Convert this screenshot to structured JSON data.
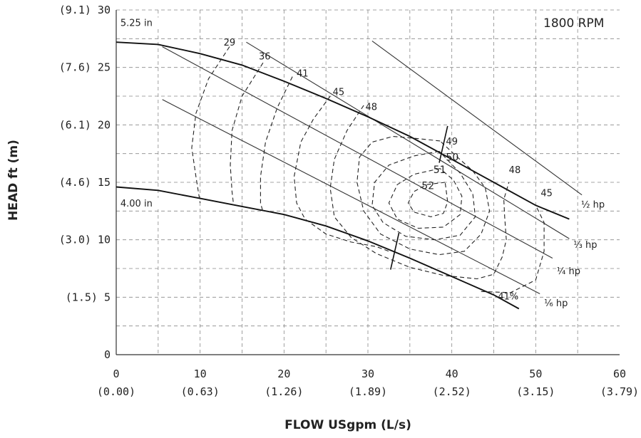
{
  "chart_data": {
    "type": "line",
    "title": "",
    "annotation_rpm": "1800 RPM",
    "xlabel": "FLOW USgpm (L/s)",
    "ylabel": "HEAD ft (m)",
    "xlim": [
      0,
      60
    ],
    "ylim": [
      0,
      30
    ],
    "grid": true,
    "x_ticks": [
      {
        "v": 0,
        "label": "0",
        "sub": "(0.00)"
      },
      {
        "v": 10,
        "label": "10",
        "sub": "(0.63)"
      },
      {
        "v": 20,
        "label": "20",
        "sub": "(1.26)"
      },
      {
        "v": 30,
        "label": "30",
        "sub": "(1.89)"
      },
      {
        "v": 40,
        "label": "40",
        "sub": "(2.52)"
      },
      {
        "v": 50,
        "label": "50",
        "sub": "(3.15)"
      },
      {
        "v": 60,
        "label": "60",
        "sub": "(3.79)"
      }
    ],
    "y_ticks": [
      {
        "v": 0,
        "label": "0"
      },
      {
        "v": 5,
        "label": "(1.5) 5"
      },
      {
        "v": 10,
        "label": "(3.0) 10"
      },
      {
        "v": 15,
        "label": "(4.6) 15"
      },
      {
        "v": 20,
        "label": "(6.1) 20"
      },
      {
        "v": 25,
        "label": "(7.6) 25"
      },
      {
        "v": 30,
        "label": "(9.1) 30"
      }
    ],
    "impeller_curves": [
      {
        "name": "5.25 in",
        "points": [
          [
            0,
            27.2
          ],
          [
            5,
            27.0
          ],
          [
            10,
            26.2
          ],
          [
            15,
            25.2
          ],
          [
            20,
            23.8
          ],
          [
            25,
            22.3
          ],
          [
            30,
            20.7
          ],
          [
            35,
            19.0
          ],
          [
            40,
            17.0
          ],
          [
            45,
            15.0
          ],
          [
            50,
            13.0
          ],
          [
            54,
            11.8
          ]
        ]
      },
      {
        "name": "4.00 in",
        "points": [
          [
            0,
            14.6
          ],
          [
            5,
            14.3
          ],
          [
            10,
            13.6
          ],
          [
            15,
            12.9
          ],
          [
            20,
            12.2
          ],
          [
            25,
            11.2
          ],
          [
            30,
            9.9
          ],
          [
            35,
            8.4
          ],
          [
            40,
            6.8
          ],
          [
            45,
            5.2
          ],
          [
            48,
            4.0
          ]
        ]
      }
    ],
    "power_curves": [
      {
        "name": "½ hp",
        "points": [
          [
            30.5,
            27.3
          ],
          [
            55.5,
            13.9
          ]
        ]
      },
      {
        "name": "⅓ hp",
        "points": [
          [
            15.5,
            27.2
          ],
          [
            54,
            10.1
          ]
        ]
      },
      {
        "name": "¼ hp",
        "points": [
          [
            5.5,
            26.8
          ],
          [
            52,
            8.4
          ]
        ]
      },
      {
        "name": "⅙ hp",
        "points": [
          [
            5.5,
            22.2
          ],
          [
            50.5,
            5.3
          ]
        ]
      }
    ],
    "efficiency_curves": [
      {
        "name": "29",
        "points": [
          [
            13.5,
            26.8
          ],
          [
            11,
            24
          ],
          [
            9.5,
            21
          ],
          [
            9,
            18
          ],
          [
            9.5,
            15.5
          ],
          [
            10,
            13.2
          ]
        ]
      },
      {
        "name": "36",
        "points": [
          [
            17.5,
            25.4
          ],
          [
            15,
            22.5
          ],
          [
            13.8,
            19.5
          ],
          [
            13.6,
            16.5
          ],
          [
            13.8,
            14.2
          ],
          [
            14,
            13.0
          ]
        ]
      },
      {
        "name": "41",
        "points": [
          [
            21,
            24.2
          ],
          [
            19.2,
            21.5
          ],
          [
            17.8,
            18.5
          ],
          [
            17.2,
            15.5
          ],
          [
            17.2,
            13.2
          ],
          [
            17.5,
            12.4
          ]
        ]
      },
      {
        "name": "45",
        "points": [
          [
            25.5,
            22.5
          ],
          [
            23.5,
            20.5
          ],
          [
            22,
            18.5
          ],
          [
            21.2,
            15.5
          ],
          [
            21.5,
            13.2
          ],
          [
            22.5,
            11.8
          ],
          [
            25,
            10.5
          ],
          [
            28,
            9.8
          ],
          [
            31,
            9.4
          ],
          [
            32.5,
            9.0
          ]
        ]
      },
      {
        "name": "48",
        "points": [
          [
            29.5,
            21.7
          ],
          [
            27.5,
            19.5
          ],
          [
            26,
            17
          ],
          [
            25.5,
            14.5
          ],
          [
            26,
            12
          ],
          [
            28,
            10.2
          ],
          [
            31,
            8.8
          ],
          [
            35,
            7.6
          ],
          [
            39,
            6.9
          ],
          [
            43,
            6.6
          ],
          [
            45,
            7.0
          ],
          [
            46,
            8.5
          ],
          [
            46.5,
            10
          ],
          [
            46.3,
            12
          ],
          [
            46.2,
            13.5
          ],
          [
            46.8,
            15.0
          ]
        ]
      },
      {
        "name": "49",
        "points": [
          [
            38.6,
            18.6
          ],
          [
            36,
            18.8
          ],
          [
            33,
            19.0
          ],
          [
            30.5,
            18.5
          ],
          [
            29,
            17.2
          ],
          [
            28.7,
            15
          ],
          [
            29.5,
            12.5
          ],
          [
            31.5,
            10.5
          ],
          [
            35,
            9.2
          ],
          [
            38.5,
            8.7
          ],
          [
            41.5,
            9.0
          ],
          [
            43.5,
            10.5
          ],
          [
            44.5,
            12.5
          ],
          [
            44,
            14.5
          ],
          [
            42.5,
            16.0
          ],
          [
            40.5,
            17.3
          ],
          [
            38.6,
            18.6
          ]
        ]
      },
      {
        "name": "50",
        "points": [
          [
            38.5,
            17.7
          ],
          [
            35.5,
            17.3
          ],
          [
            32.5,
            16.5
          ],
          [
            30.8,
            15
          ],
          [
            30.5,
            13
          ],
          [
            31.8,
            11.5
          ],
          [
            34.5,
            10.3
          ],
          [
            38,
            10
          ],
          [
            41,
            10.4
          ],
          [
            42.8,
            12
          ],
          [
            42.5,
            14
          ],
          [
            41,
            15.8
          ],
          [
            38.5,
            17.7
          ]
        ]
      },
      {
        "name": "51",
        "points": [
          [
            38.6,
            16.2
          ],
          [
            35.5,
            15.7
          ],
          [
            33.5,
            14.8
          ],
          [
            32.5,
            13.2
          ],
          [
            33.5,
            11.8
          ],
          [
            36,
            11.0
          ],
          [
            39,
            11.1
          ],
          [
            41,
            12.2
          ],
          [
            41.2,
            13.8
          ],
          [
            40.2,
            15.2
          ],
          [
            38.6,
            16.2
          ]
        ]
      },
      {
        "name": "52",
        "points": [
          [
            39.2,
            15.0
          ],
          [
            37,
            14.8
          ],
          [
            35.5,
            14.2
          ],
          [
            34.8,
            13.2
          ],
          [
            35.5,
            12.4
          ],
          [
            37.5,
            12.0
          ],
          [
            39,
            12.3
          ],
          [
            39.5,
            13.3
          ],
          [
            39.2,
            15.0
          ]
        ]
      },
      {
        "name": "41%",
        "points": [
          [
            43.5,
            5.5
          ],
          [
            47,
            5.4
          ],
          [
            50,
            6.5
          ],
          [
            51,
            9
          ],
          [
            51,
            11.5
          ],
          [
            50,
            13.0
          ]
        ]
      }
    ],
    "best_efficiency_marks": [
      {
        "x": 39,
        "y": 18.3,
        "dx": 0.5,
        "dy": 1.6
      },
      {
        "x": 33.2,
        "y": 9.0,
        "dx": 0.5,
        "dy": 1.6
      }
    ],
    "curve_labels": [
      {
        "text": "5.25 in",
        "x": 0.5,
        "y": 28.6
      },
      {
        "text": "4.00 in",
        "x": 0.5,
        "y": 12.9
      },
      {
        "text": "29",
        "x": 12.8,
        "y": 26.9
      },
      {
        "text": "36",
        "x": 17.0,
        "y": 25.7
      },
      {
        "text": "41",
        "x": 21.5,
        "y": 24.2
      },
      {
        "text": "45",
        "x": 25.8,
        "y": 22.6
      },
      {
        "text": "48",
        "x": 29.7,
        "y": 21.3
      },
      {
        "text": "49",
        "x": 39.3,
        "y": 18.3
      },
      {
        "text": "50",
        "x": 39.3,
        "y": 16.9
      },
      {
        "text": "51",
        "x": 37.8,
        "y": 15.8
      },
      {
        "text": "52",
        "x": 36.4,
        "y": 14.4
      },
      {
        "text": "48",
        "x": 46.8,
        "y": 15.8
      },
      {
        "text": "45",
        "x": 50.6,
        "y": 13.8
      },
      {
        "text": "41%",
        "x": 45.5,
        "y": 4.8
      },
      {
        "text": "½ hp",
        "x": 55.4,
        "y": 12.8
      },
      {
        "text": "⅓ hp",
        "x": 54.5,
        "y": 9.3
      },
      {
        "text": "¼ hp",
        "x": 52.5,
        "y": 7.0
      },
      {
        "text": "⅙ hp",
        "x": 51.0,
        "y": 4.2
      }
    ]
  }
}
